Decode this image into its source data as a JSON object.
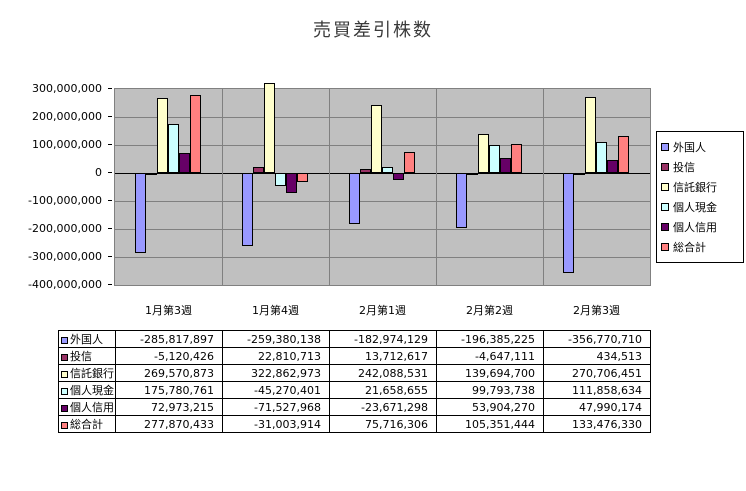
{
  "title": "売買差引株数",
  "chart_data": {
    "type": "bar",
    "title": "売買差引株数",
    "categories": [
      "1月第3週",
      "1月第4週",
      "2月第1週",
      "2月第2週",
      "2月第3週"
    ],
    "series": [
      {
        "name": "外国人",
        "color": "#9999FF",
        "values": [
          -285817897,
          -259380138,
          -182974129,
          -196385225,
          -356770710
        ]
      },
      {
        "name": "投信",
        "color": "#993366",
        "values": [
          -5120426,
          22810713,
          13712617,
          -4647111,
          434513
        ]
      },
      {
        "name": "信託銀行",
        "color": "#FFFFCC",
        "values": [
          269570873,
          322862973,
          242088531,
          139694700,
          270706451
        ]
      },
      {
        "name": "個人現金",
        "color": "#CCFFFF",
        "values": [
          175780761,
          -45270401,
          21658655,
          99793738,
          111858634
        ]
      },
      {
        "name": "個人信用",
        "color": "#660066",
        "values": [
          72973215,
          -71527968,
          -23671298,
          53904270,
          47990174
        ]
      },
      {
        "name": "総合計",
        "color": "#FF8080",
        "values": [
          277870433,
          -31003914,
          75716306,
          105351444,
          133476330
        ]
      }
    ],
    "ylim": [
      -400000000,
      300000000
    ],
    "ytick_step": 100000000,
    "grid": true,
    "legend_position": "right",
    "plot_bg": "#C0C0C0",
    "has_data_table": true
  }
}
